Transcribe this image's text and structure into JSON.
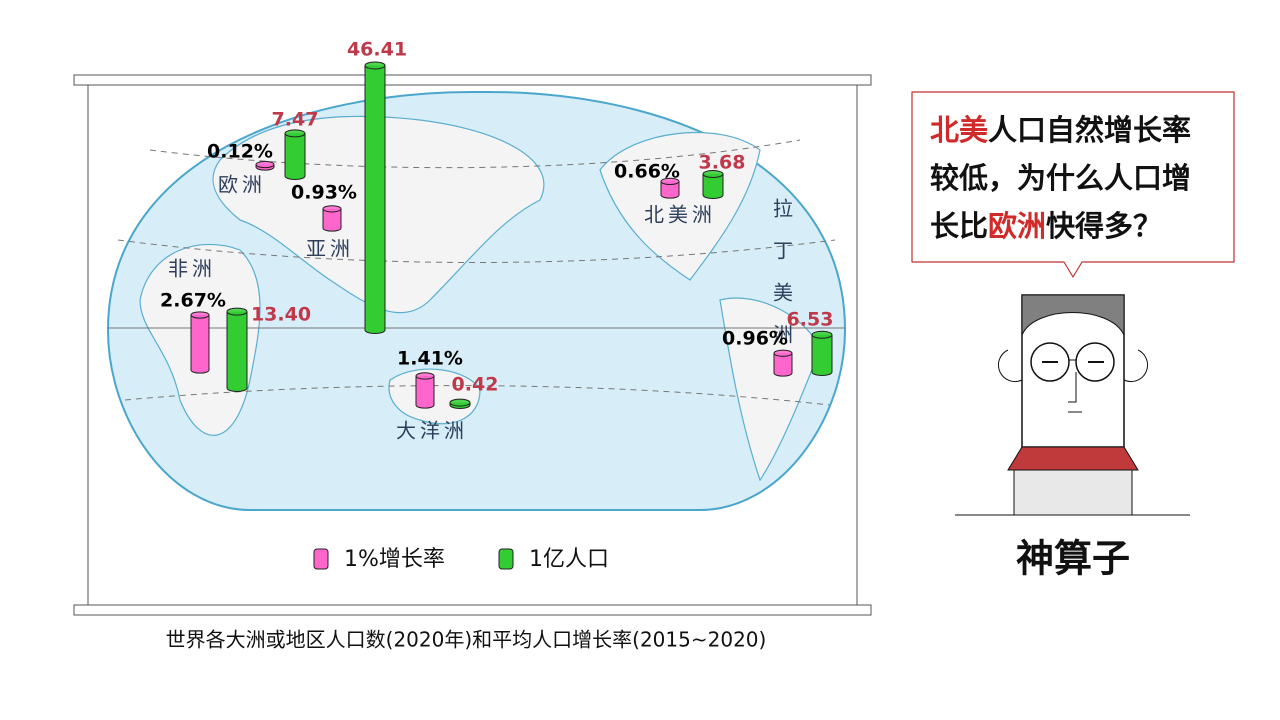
{
  "chart_data": {
    "type": "map-cylinder",
    "caption": "世界各大洲或地区人口数(2020年)和平均人口增长率(2015~2020)",
    "regions": [
      "欧洲",
      "亚洲",
      "非洲",
      "北美洲",
      "拉丁美洲",
      "大洋洲"
    ],
    "series": [
      {
        "name": "1%增长率",
        "color": "#ff66cc",
        "values": [
          0.12,
          0.93,
          2.67,
          0.66,
          0.96,
          1.41
        ],
        "value_labels": [
          "0.12%",
          "0.93%",
          "2.67%",
          "0.66%",
          "0.96%",
          "1.41%"
        ]
      },
      {
        "name": "1亿人口",
        "color": "#33cc33",
        "values": [
          7.47,
          46.41,
          13.4,
          3.68,
          6.53,
          0.42
        ],
        "value_labels": [
          "7.47",
          "46.41",
          "13.40",
          "3.68",
          "6.53",
          "0.42"
        ]
      }
    ]
  },
  "bubble": {
    "parts": [
      {
        "text": "北美",
        "highlight": true
      },
      {
        "text": "人口自然增长率较低，为什么人口增长比",
        "highlight": false
      },
      {
        "text": "欧洲",
        "highlight": true
      },
      {
        "text": "快得多？",
        "highlight": false
      }
    ]
  },
  "person": {
    "name": "神算子"
  }
}
